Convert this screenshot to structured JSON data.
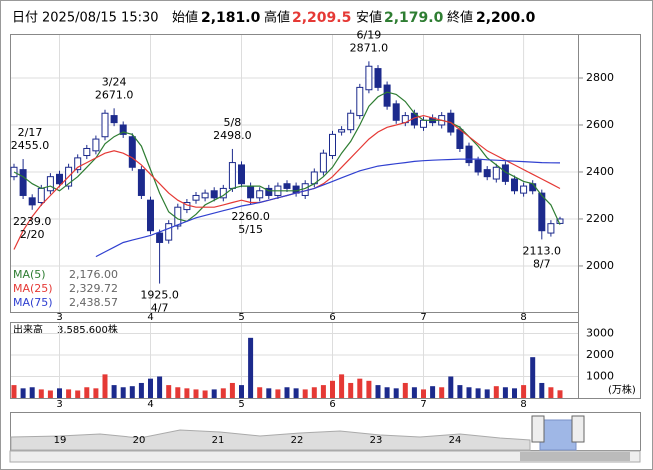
{
  "chart_data": {
    "type": "candlestick",
    "header": {
      "date_label": "日付",
      "date": "2025/08/15 15:30",
      "open_label": "始値",
      "open": {
        "value": 2181,
        "label": "2,181.0"
      },
      "high_label": "高値",
      "high": {
        "value": 2209.5,
        "label": "2,209.5"
      },
      "low_label": "安値",
      "low": {
        "value": 2179,
        "label": "2,179.0"
      },
      "close_label": "終値",
      "close": {
        "value": 2200,
        "label": "2,200.0"
      }
    },
    "categories": [
      null,
      null,
      null,
      null,
      null,
      "3",
      null,
      null,
      null,
      null,
      null,
      null,
      null,
      null,
      null,
      "4",
      null,
      null,
      null,
      null,
      null,
      null,
      null,
      null,
      null,
      "5",
      null,
      null,
      null,
      null,
      null,
      null,
      null,
      null,
      null,
      "6",
      null,
      null,
      null,
      null,
      null,
      null,
      null,
      null,
      null,
      "7",
      null,
      null,
      null,
      null,
      null,
      null,
      null,
      null,
      null,
      null,
      "8",
      null,
      null,
      null,
      null
    ],
    "open": [
      2380,
      2410,
      2290,
      2270,
      2320,
      2390,
      2340,
      2410,
      2470,
      2490,
      2550,
      2640,
      2600,
      2550,
      2410,
      2280,
      2140,
      2110,
      2170,
      2240,
      2280,
      2290,
      2320,
      2290,
      2330,
      2430,
      2340,
      2290,
      2330,
      2300,
      2350,
      2340,
      2300,
      2350,
      2400,
      2470,
      2570,
      2580,
      2640,
      2750,
      2840,
      2770,
      2690,
      2610,
      2650,
      2590,
      2630,
      2600,
      2650,
      2580,
      2510,
      2450,
      2410,
      2370,
      2430,
      2370,
      2310,
      2350,
      2310,
      2140,
      2181
    ],
    "high": [
      2435,
      2455,
      2305,
      2345,
      2395,
      2405,
      2435,
      2475,
      2515,
      2555,
      2665,
      2671,
      2615,
      2565,
      2425,
      2295,
      2155,
      2195,
      2265,
      2285,
      2315,
      2325,
      2335,
      2345,
      2498,
      2445,
      2355,
      2335,
      2345,
      2355,
      2365,
      2355,
      2365,
      2415,
      2495,
      2575,
      2595,
      2665,
      2775,
      2871,
      2855,
      2785,
      2705,
      2655,
      2665,
      2635,
      2645,
      2655,
      2665,
      2595,
      2525,
      2465,
      2425,
      2435,
      2445,
      2385,
      2355,
      2365,
      2325,
      2195,
      2209.5
    ],
    "low": [
      2365,
      2285,
      2239,
      2255,
      2305,
      2335,
      2325,
      2395,
      2455,
      2475,
      2535,
      2595,
      2545,
      2405,
      2285,
      2135,
      1925,
      2095,
      2155,
      2225,
      2265,
      2275,
      2275,
      2275,
      2315,
      2335,
      2260,
      2275,
      2285,
      2285,
      2315,
      2295,
      2285,
      2335,
      2385,
      2455,
      2555,
      2565,
      2625,
      2735,
      2745,
      2665,
      2605,
      2595,
      2585,
      2575,
      2595,
      2585,
      2555,
      2485,
      2425,
      2385,
      2365,
      2355,
      2345,
      2305,
      2295,
      2305,
      2113,
      2125,
      2179
    ],
    "close": [
      2420,
      2300,
      2260,
      2330,
      2380,
      2350,
      2420,
      2460,
      2500,
      2540,
      2650,
      2610,
      2560,
      2420,
      2300,
      2150,
      2100,
      2180,
      2250,
      2270,
      2300,
      2310,
      2290,
      2330,
      2440,
      2350,
      2290,
      2320,
      2300,
      2340,
      2330,
      2310,
      2350,
      2400,
      2480,
      2560,
      2580,
      2650,
      2760,
      2850,
      2760,
      2680,
      2620,
      2640,
      2600,
      2620,
      2610,
      2640,
      2570,
      2500,
      2440,
      2400,
      2380,
      2420,
      2360,
      2320,
      2340,
      2320,
      2150,
      2180,
      2200
    ],
    "up_color": "#ffffff",
    "down_color": "#1c2a8c",
    "edge_color": "#1c2a8c",
    "series": [
      {
        "name": "MA(5)",
        "color": "#2e7d32",
        "last": {
          "value": 2176,
          "label": "2,176.00"
        },
        "values": [
          2400,
          2380,
          2350,
          2330,
          2340,
          2320,
          2350,
          2380,
          2420,
          2460,
          2520,
          2550,
          2570,
          2560,
          2510,
          2410,
          2310,
          2230,
          2200,
          2190,
          2220,
          2260,
          2280,
          2300,
          2330,
          2340,
          2340,
          2340,
          2320,
          2320,
          2320,
          2320,
          2330,
          2350,
          2380,
          2420,
          2480,
          2530,
          2600,
          2680,
          2720,
          2740,
          2730,
          2700,
          2650,
          2620,
          2620,
          2620,
          2610,
          2590,
          2550,
          2510,
          2460,
          2430,
          2400,
          2380,
          2360,
          2350,
          2300,
          2260,
          2176
        ]
      },
      {
        "name": "MA(25)",
        "color": "#e53935",
        "last": {
          "value": 2329.72,
          "label": "2,329.72"
        },
        "values": [
          2070,
          2150,
          2210,
          2260,
          2300,
          2340,
          2380,
          2420,
          2440,
          2460,
          2480,
          2490,
          2480,
          2460,
          2430,
          2390,
          2350,
          2310,
          2280,
          2260,
          2250,
          2250,
          2250,
          2260,
          2270,
          2280,
          2270,
          2270,
          2280,
          2290,
          2300,
          2310,
          2320,
          2330,
          2350,
          2380,
          2420,
          2460,
          2500,
          2540,
          2570,
          2590,
          2600,
          2610,
          2630,
          2640,
          2630,
          2620,
          2610,
          2580,
          2550,
          2520,
          2490,
          2470,
          2450,
          2430,
          2410,
          2390,
          2370,
          2350,
          2329.72
        ]
      },
      {
        "name": "MA(75)",
        "color": "#3040d0",
        "last": {
          "value": 2438.57,
          "label": "2,438.57"
        },
        "values": [
          null,
          null,
          null,
          null,
          null,
          null,
          null,
          null,
          null,
          2040,
          2060,
          2080,
          2100,
          2110,
          2120,
          2130,
          2145,
          2160,
          2175,
          2190,
          2205,
          2215,
          2225,
          2235,
          2245,
          2255,
          2262,
          2270,
          2280,
          2290,
          2300,
          2310,
          2320,
          2330,
          2345,
          2360,
          2375,
          2390,
          2405,
          2415,
          2425,
          2430,
          2435,
          2440,
          2445,
          2448,
          2450,
          2452,
          2453,
          2455,
          2455,
          2455,
          2452,
          2450,
          2448,
          2446,
          2444,
          2442,
          2440,
          2439,
          2438.57
        ]
      }
    ],
    "high_labels": [
      {
        "date": "2/17",
        "value": 2455,
        "label": "2455.0"
      },
      {
        "date": "3/24",
        "value": 2671,
        "label": "2671.0"
      },
      {
        "date": "5/8",
        "value": 2498,
        "label": "2498.0"
      },
      {
        "date": "6/19",
        "value": 2871,
        "label": "2871.0"
      }
    ],
    "low_labels": [
      {
        "date": "2/20",
        "value": 2239,
        "label": "2239.0"
      },
      {
        "date": "4/7",
        "value": 1925,
        "label": "1925.0"
      },
      {
        "date": "5/15",
        "value": 2260,
        "label": "2260.0"
      },
      {
        "date": "8/7",
        "value": 2113,
        "label": "2113.0"
      }
    ],
    "ylim": [
      1804,
      2983
    ],
    "yticks": [
      2000,
      2200,
      2400,
      2600,
      2800
    ],
    "volume": {
      "title": "出来高",
      "current": {
        "value": 3585600,
        "label": "3,585,600株"
      },
      "unit": "(万株)",
      "up_color": "#e53935",
      "down_color": "#1c2a8c",
      "values": [
        600,
        450,
        500,
        400,
        350,
        450,
        400,
        350,
        500,
        450,
        1100,
        600,
        500,
        550,
        700,
        900,
        1000,
        600,
        500,
        450,
        400,
        350,
        400,
        450,
        700,
        600,
        2800,
        500,
        450,
        400,
        500,
        450,
        400,
        500,
        600,
        800,
        1100,
        700,
        900,
        800,
        600,
        500,
        450,
        700,
        500,
        400,
        550,
        500,
        1000,
        600,
        500,
        450,
        400,
        550,
        500,
        450,
        600,
        1900,
        700,
        500,
        358.56
      ],
      "ylim": [
        0,
        3490
      ],
      "yticks": [
        1000,
        2000,
        3000
      ]
    },
    "navigator": {
      "labels": [
        "19",
        "20",
        "21",
        "22",
        "23",
        "24"
      ]
    }
  }
}
